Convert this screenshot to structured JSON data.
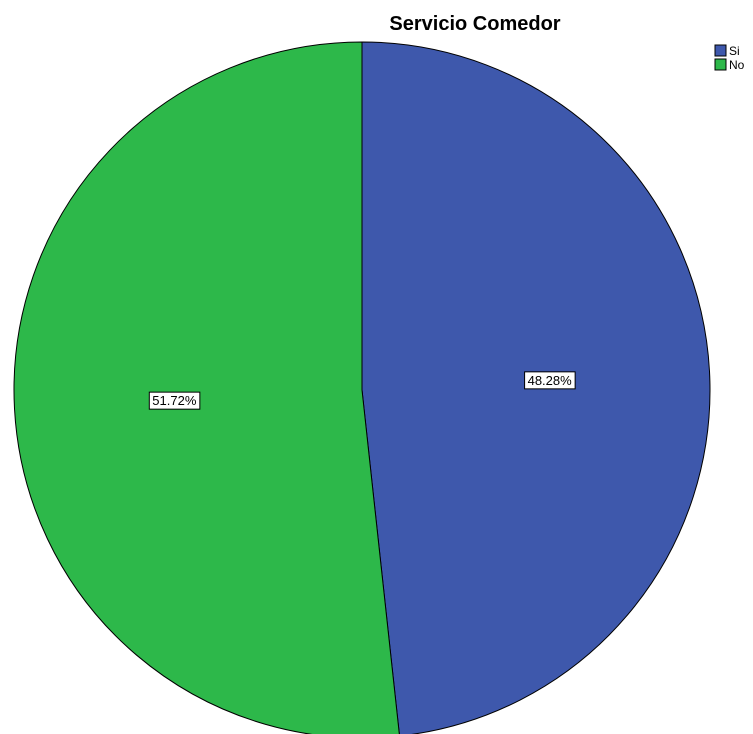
{
  "chart_data": {
    "type": "pie",
    "title": "Servicio Comedor",
    "categories": [
      "Si",
      "No"
    ],
    "values": [
      48.28,
      51.72
    ],
    "data_labels": [
      "48.28%",
      "51.72%"
    ],
    "colors": [
      "#3e58ac",
      "#2db84a"
    ],
    "legend_position": "top-right",
    "start_angle": "12 o'clock",
    "direction": "clockwise"
  }
}
